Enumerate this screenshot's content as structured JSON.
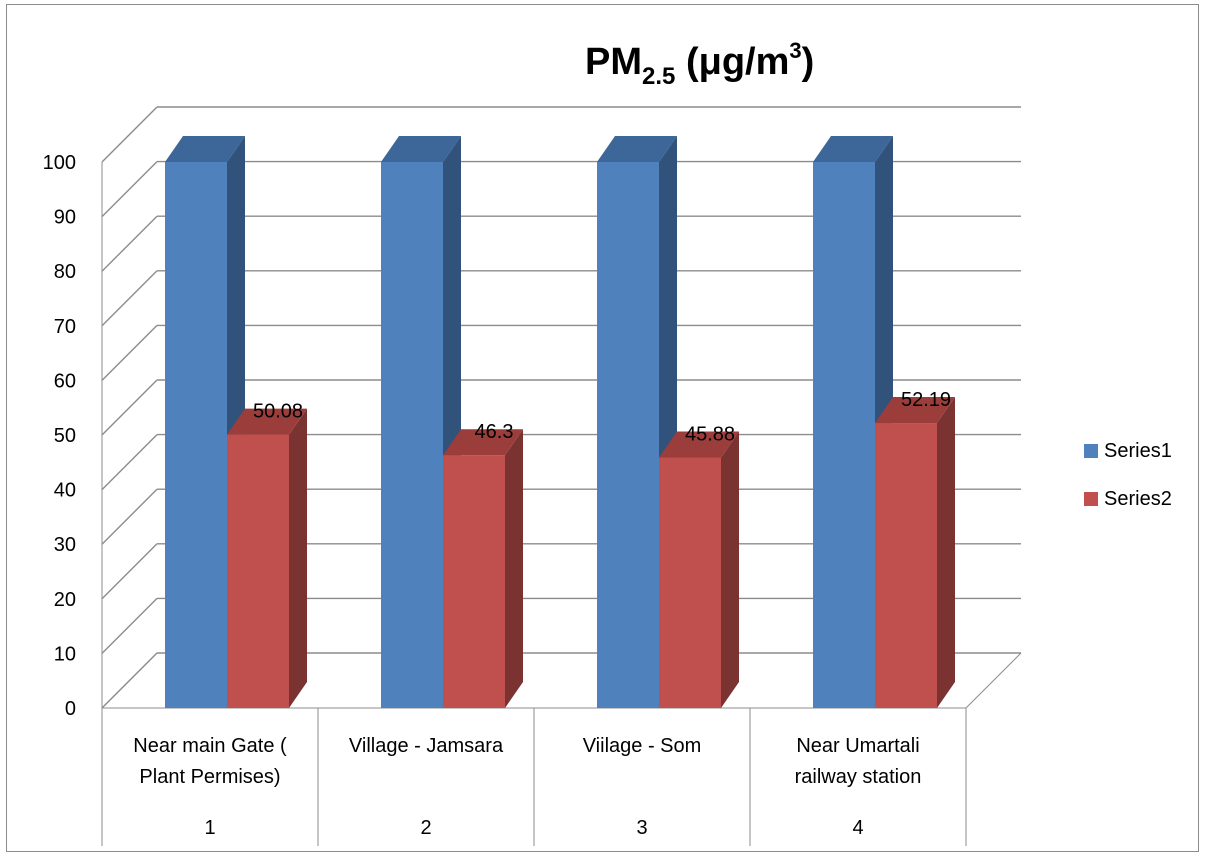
{
  "chart_data": {
    "type": "bar",
    "title": {
      "main": "PM",
      "sub": "2.5",
      "unit_pre": "(μg/m",
      "unit_sup": "3",
      "unit_post": ")"
    },
    "categories": [
      {
        "label_lines": [
          "Near main Gate (",
          "Plant Permises)"
        ],
        "index": "1"
      },
      {
        "label_lines": [
          "Village - Jamsara"
        ],
        "index": "2"
      },
      {
        "label_lines": [
          "Viilage - Som"
        ],
        "index": "3"
      },
      {
        "label_lines": [
          "Near Umartali",
          "railway station"
        ],
        "index": "4"
      }
    ],
    "series": [
      {
        "name": "Series1",
        "values": [
          100,
          100,
          100,
          100
        ],
        "show_labels": false,
        "color": "#4f81bd",
        "side_color": "#31527a",
        "top_color": "#3d6699"
      },
      {
        "name": "Series2",
        "values": [
          50.08,
          46.3,
          45.88,
          52.19
        ],
        "labels": [
          "50.08",
          "46.3",
          "45.88",
          "52.19"
        ],
        "show_labels": true,
        "color": "#c0504d",
        "side_color": "#7a3331",
        "top_color": "#9b3d3a"
      }
    ],
    "ylim": [
      0,
      100
    ],
    "yticks": [
      "0",
      "10",
      "20",
      "30",
      "40",
      "50",
      "60",
      "70",
      "80",
      "90",
      "100"
    ],
    "grid": true,
    "legend_position": "right",
    "style": "3d-clustered-column"
  }
}
